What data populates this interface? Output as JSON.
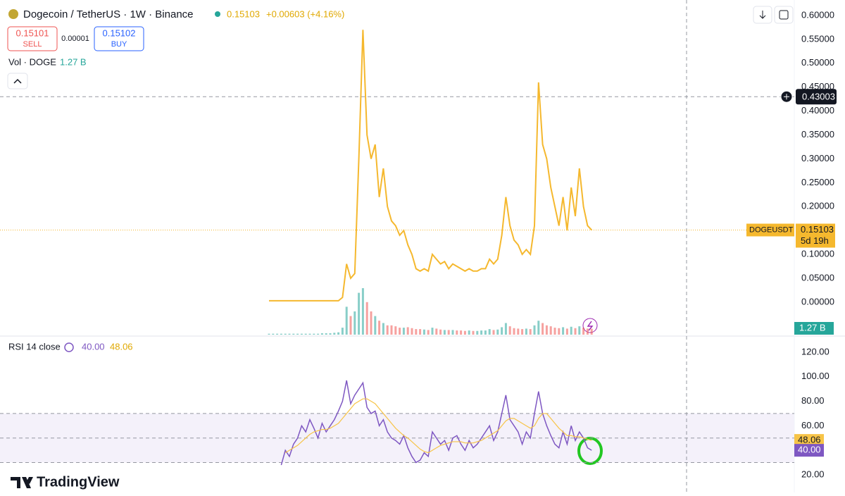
{
  "header": {
    "symbol": "Dogecoin / TetherUS · 1W · Binance",
    "last": "0.15103",
    "change": "+0.00603 (+4.16%)",
    "sell_price": "0.15101",
    "sell": "SELL",
    "spread": "0.00001",
    "buy_price": "0.15102",
    "buy": "BUY",
    "volume_label": "Vol · DOGE",
    "volume_value": "1.27 B",
    "crosshair_value": 0.43003,
    "crosshair_label": "0.43003",
    "ticker": "DOGEUSDT",
    "price_badge": "0.15103",
    "countdown": "5d 19h",
    "volume_badge": "1.27 B",
    "rsi_value": "40.00",
    "rsi_ma": "48.06",
    "rsi_badge_ma": "48.06",
    "rsi_badge": "40.00",
    "brand": "TradingView"
  },
  "chart_data": [
    {
      "type": "line",
      "color": "#f5b82e",
      "up_color": "#26a69a",
      "down_color": "#ef5350",
      "values": [
        0.003,
        0.003,
        0.003,
        0.003,
        0.003,
        0.003,
        0.003,
        0.003,
        0.003,
        0.003,
        0.003,
        0.003,
        0.003,
        0.003,
        0.003,
        0.003,
        0.003,
        0.003,
        0.01,
        0.08,
        0.05,
        0.06,
        0.3,
        0.57,
        0.35,
        0.3,
        0.33,
        0.22,
        0.28,
        0.2,
        0.17,
        0.16,
        0.14,
        0.15,
        0.12,
        0.1,
        0.07,
        0.065,
        0.07,
        0.065,
        0.1,
        0.09,
        0.08,
        0.085,
        0.07,
        0.08,
        0.075,
        0.07,
        0.065,
        0.07,
        0.065,
        0.065,
        0.07,
        0.07,
        0.09,
        0.08,
        0.09,
        0.14,
        0.22,
        0.16,
        0.13,
        0.12,
        0.1,
        0.11,
        0.1,
        0.16,
        0.46,
        0.33,
        0.3,
        0.24,
        0.2,
        0.16,
        0.22,
        0.15,
        0.24,
        0.18,
        0.28,
        0.2,
        0.16,
        0.151
      ],
      "volume": [
        0.2,
        0.2,
        0.2,
        0.2,
        0.2,
        0.2,
        0.2,
        0.2,
        0.2,
        0.2,
        0.2,
        0.2,
        0.2,
        0.3,
        0.3,
        0.3,
        0.4,
        0.5,
        1.5,
        6,
        4,
        5,
        9,
        10,
        7,
        5,
        4,
        3,
        2.5,
        2,
        2,
        1.8,
        1.5,
        1.5,
        1.6,
        1.4,
        1.2,
        1.2,
        1.1,
        1,
        1.5,
        1.3,
        1.1,
        1,
        1,
        1,
        0.9,
        0.9,
        0.8,
        0.9,
        0.8,
        0.8,
        0.9,
        0.9,
        1.2,
        1,
        1.1,
        1.6,
        2.5,
        1.8,
        1.4,
        1.3,
        1.2,
        1.3,
        1.2,
        2,
        3,
        2.5,
        2,
        1.8,
        1.5,
        1.4,
        1.6,
        1.3,
        1.7,
        1.4,
        1.8,
        1.5,
        1.3,
        1.27
      ],
      "ylim": [
        -0.068,
        0.625
      ],
      "yticks": [
        {
          "value": 0.6,
          "label": "0.60000"
        },
        {
          "value": 0.55,
          "label": "0.55000"
        },
        {
          "value": 0.5,
          "label": "0.50000"
        },
        {
          "value": 0.45,
          "label": "0.45000"
        },
        {
          "value": 0.4,
          "label": "0.40000"
        },
        {
          "value": 0.35,
          "label": "0.35000"
        },
        {
          "value": 0.3,
          "label": "0.30000"
        },
        {
          "value": 0.25,
          "label": "0.25000"
        },
        {
          "value": 0.2,
          "label": "0.20000"
        },
        {
          "value": 0.15,
          "label": "0.15000"
        },
        {
          "value": 0.1,
          "label": "0.10000"
        },
        {
          "value": 0.05,
          "label": "0.05000"
        },
        {
          "value": 0,
          "label": "0.00000"
        }
      ]
    },
    {
      "type": "line",
      "title": "RSI 14 close",
      "band_color": "#ede7f6",
      "series": [
        {
          "color": "#7e57c2",
          "values": [
            null,
            null,
            null,
            28,
            40,
            35,
            45,
            50,
            60,
            55,
            65,
            58,
            50,
            62,
            55,
            60,
            65,
            72,
            80,
            97,
            78,
            85,
            90,
            95,
            75,
            70,
            72,
            60,
            65,
            55,
            50,
            48,
            45,
            52,
            42,
            35,
            30,
            32,
            38,
            35,
            55,
            50,
            45,
            48,
            40,
            50,
            52,
            45,
            40,
            48,
            42,
            45,
            50,
            55,
            60,
            48,
            55,
            70,
            85,
            65,
            60,
            55,
            45,
            55,
            50,
            70,
            88,
            70,
            60,
            52,
            45,
            42,
            55,
            45,
            60,
            48,
            55,
            50,
            42,
            40
          ]
        },
        {
          "color": "#f7c447",
          "values": [
            null,
            null,
            null,
            null,
            38,
            40,
            42,
            44,
            47,
            50,
            53,
            55,
            56,
            57,
            57,
            58,
            60,
            62,
            66,
            70,
            74,
            78,
            80,
            82,
            82,
            80,
            78,
            74,
            70,
            66,
            62,
            58,
            55,
            52,
            50,
            47,
            44,
            41,
            39,
            38,
            40,
            42,
            44,
            45,
            46,
            47,
            47,
            47,
            46,
            46,
            46,
            47,
            48,
            50,
            52,
            54,
            56,
            60,
            64,
            66,
            66,
            64,
            62,
            60,
            58,
            60,
            66,
            70,
            70,
            66,
            62,
            58,
            55,
            52,
            52,
            51,
            51,
            50,
            49,
            48.06
          ]
        }
      ],
      "hlines": [
        70,
        50,
        30
      ],
      "ylim": [
        5.6,
        132.6
      ],
      "yticks": [
        {
          "value": 120,
          "label": "120.00"
        },
        {
          "value": 100,
          "label": "100.00"
        },
        {
          "value": 80,
          "label": "80.00"
        },
        {
          "value": 60,
          "label": "60.00"
        },
        {
          "value": 20,
          "label": "20.00"
        }
      ]
    }
  ]
}
